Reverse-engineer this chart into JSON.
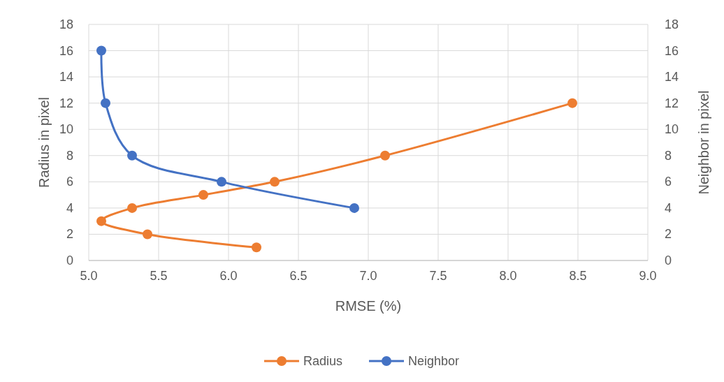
{
  "chart_data": {
    "type": "line",
    "xlabel": "RMSE (%)",
    "ylabel": "Radius in pixel",
    "y2label": "Neighbor in pixel",
    "xlim": [
      5,
      9
    ],
    "xticks": [
      {
        "value": 5,
        "label": "5.0"
      },
      {
        "value": 5.5,
        "label": "5.5"
      },
      {
        "value": 6,
        "label": "6.0"
      },
      {
        "value": 6.5,
        "label": "6.5"
      },
      {
        "value": 7,
        "label": "7.0"
      },
      {
        "value": 7.5,
        "label": "7.5"
      },
      {
        "value": 8,
        "label": "8.0"
      },
      {
        "value": 8.5,
        "label": "8.5"
      },
      {
        "value": 9,
        "label": "9.0"
      }
    ],
    "ylim": [
      0,
      18
    ],
    "yticks": [
      0,
      2,
      4,
      6,
      8,
      10,
      12,
      14,
      16,
      18
    ],
    "y2lim": [
      0,
      18
    ],
    "y2ticks": [
      0,
      2,
      4,
      6,
      8,
      10,
      12,
      14,
      16,
      18
    ],
    "grid": true,
    "legend": "bottom",
    "marker": "circle",
    "line_style": "solid",
    "series": [
      {
        "name": "Radius",
        "color": "#ed7d31",
        "x": [
          6.2,
          5.42,
          5.09,
          5.31,
          5.82,
          6.33,
          7.12,
          8.46
        ],
        "values": [
          1,
          2,
          3,
          4,
          5,
          6,
          8,
          12
        ]
      },
      {
        "name": "Neighbor",
        "color": "#4472c4",
        "axis": "y2",
        "x": [
          6.9,
          5.95,
          5.31,
          5.12,
          5.09
        ],
        "values": [
          4,
          6,
          8,
          12,
          16
        ]
      }
    ]
  }
}
